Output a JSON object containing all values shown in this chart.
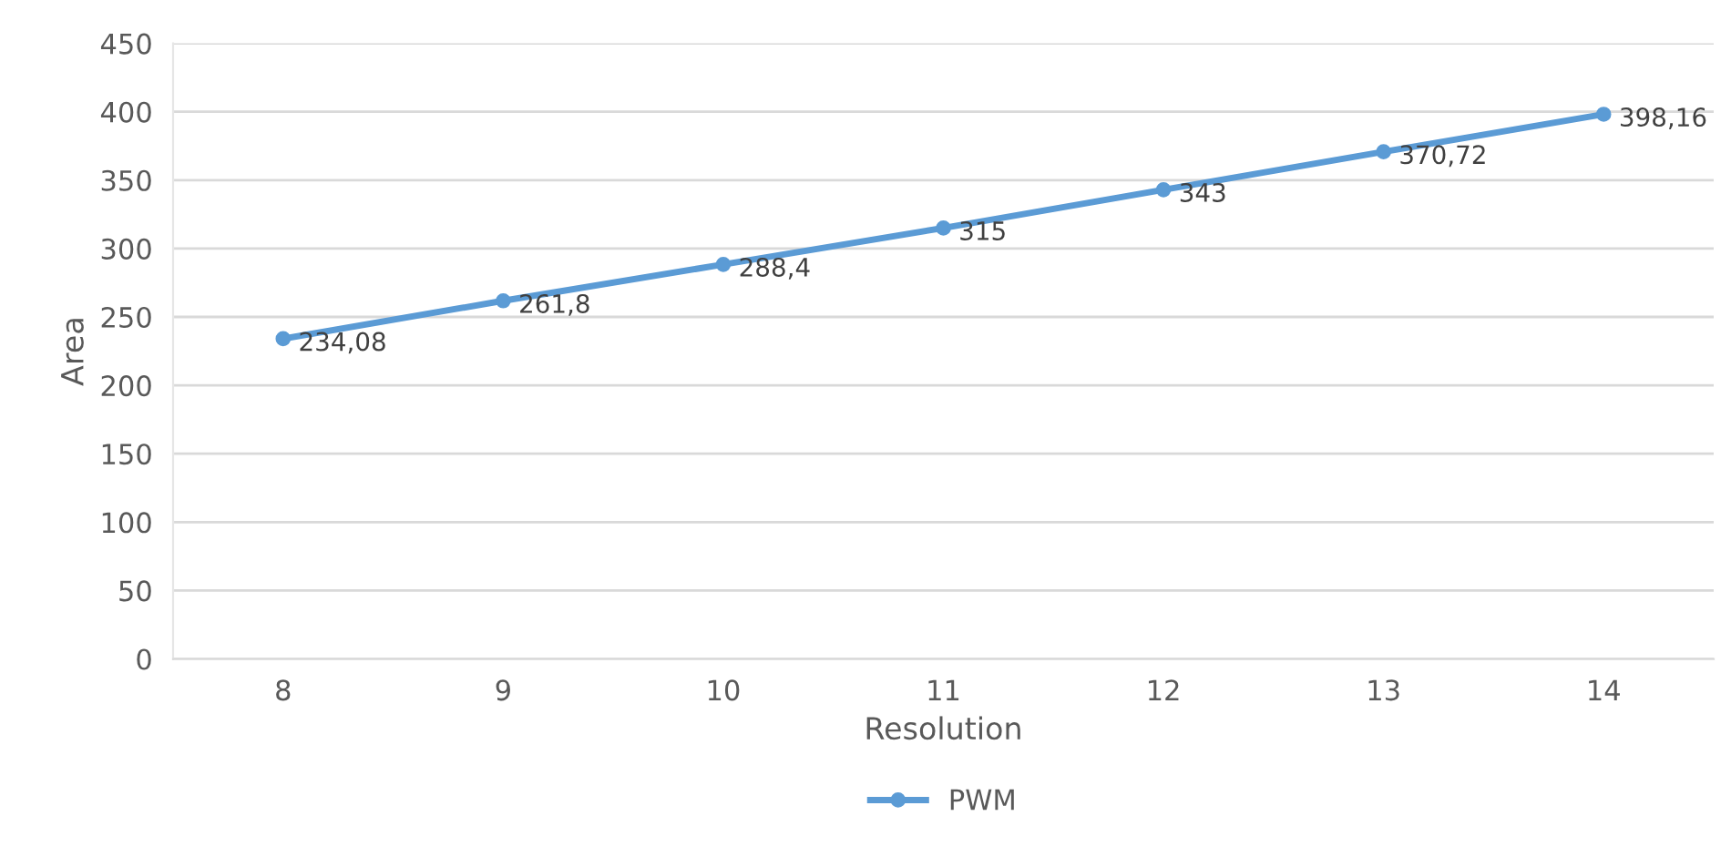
{
  "chart_data": {
    "type": "line",
    "xlabel": "Resolution",
    "ylabel": "Area",
    "categories": [
      "8",
      "9",
      "10",
      "11",
      "12",
      "13",
      "14"
    ],
    "series": [
      {
        "name": "PWM",
        "color": "#5b9bd5",
        "values": [
          234.08,
          261.8,
          288.4,
          315,
          343,
          370.72,
          398.16
        ],
        "value_labels": [
          "234,08",
          "261,8",
          "288,4",
          "315",
          "343",
          "370,72",
          "398,16"
        ]
      }
    ],
    "ylim": [
      0,
      450
    ],
    "yticks": [
      0,
      50,
      100,
      150,
      200,
      250,
      300,
      350,
      400,
      450
    ],
    "grid": "y",
    "legend": "bottom",
    "marker": "circle",
    "line_style": "solid"
  }
}
